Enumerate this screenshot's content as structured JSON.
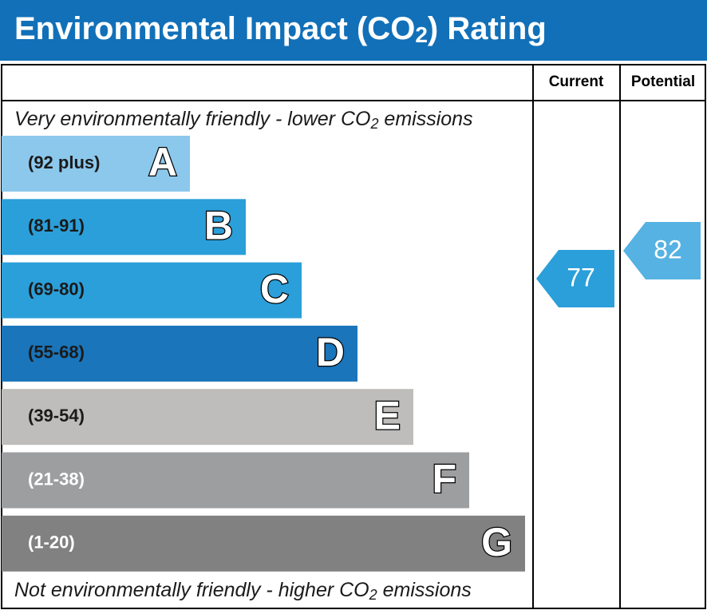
{
  "header": {
    "title": [
      "Environmental Impact (CO",
      "2",
      ") Rating"
    ]
  },
  "columns": [
    "Current",
    "Potential"
  ],
  "notes": {
    "top": [
      "Very environmentally friendly - lower CO",
      "2",
      " emissions"
    ],
    "bottom": [
      "Not environmentally friendly - higher CO",
      "2",
      " emissions"
    ]
  },
  "bands": [
    {
      "range": "(92 plus)",
      "letter": "A",
      "color": "#8cc8ec",
      "text_color": "#1a1a1a"
    },
    {
      "range": "(81-91)",
      "letter": "B",
      "color": "#2b9fd9",
      "text_color": "#1a1a1a"
    },
    {
      "range": "(69-80)",
      "letter": "C",
      "color": "#2b9fd9",
      "text_color": "#1a1a1a"
    },
    {
      "range": "(55-68)",
      "letter": "D",
      "color": "#1a75ba",
      "text_color": "#1a1a1a"
    },
    {
      "range": "(39-54)",
      "letter": "E",
      "color": "#bebdbc",
      "text_color": "#1a1a1a"
    },
    {
      "range": "(21-38)",
      "letter": "F",
      "color": "#9d9ea0",
      "text_color": "#ffffff"
    },
    {
      "range": "(1-20)",
      "letter": "G",
      "color": "#818181",
      "text_color": "#ffffff"
    }
  ],
  "current": {
    "value": 77,
    "color": "#2b9fd9"
  },
  "potential": {
    "value": 82,
    "color": "#55b2e2"
  }
}
